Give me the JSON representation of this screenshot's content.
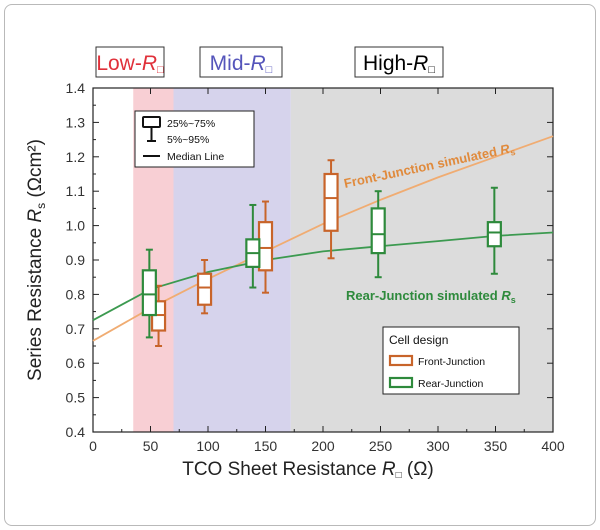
{
  "chart_data": {
    "type": "box",
    "xlabel": "TCO Sheet Resistance R□ (Ω)",
    "xlabel_parts": [
      "TCO Sheet Resistance",
      "R",
      "□",
      "(Ω)"
    ],
    "ylabel": "Series Resistance Rs (Ωcm²)",
    "ylabel_parts": [
      "Series Resistance",
      "R",
      "s",
      "(Ωcm²)"
    ],
    "xlim": [
      0,
      400
    ],
    "ylim": [
      0.4,
      1.4
    ],
    "xticks": [
      0,
      50,
      100,
      150,
      200,
      250,
      300,
      350,
      400
    ],
    "xtick_labels": [
      "0",
      "50",
      "100",
      "150",
      "200",
      "250",
      "300",
      "350",
      "400"
    ],
    "yticks": [
      0.4,
      0.5,
      0.6,
      0.7,
      0.8,
      0.9,
      1.0,
      1.1,
      1.2,
      1.3,
      1.4
    ],
    "ytick_labels": [
      "0.4",
      "0.5",
      "0.6",
      "0.7",
      "0.8",
      "0.9",
      "1.0",
      "1.1",
      "1.2",
      "1.3",
      "1.4"
    ],
    "regions": [
      {
        "name": "Low-R□",
        "label_main": "Low-",
        "label_r": "R",
        "label_sub": "□",
        "x0": 35,
        "x1": 70,
        "fill": "#f8cfd4",
        "text_color": "#e0303a"
      },
      {
        "name": "Mid-R□",
        "label_main": "Mid-",
        "label_r": "R",
        "label_sub": "□",
        "x0": 70,
        "x1": 172,
        "fill": "#d6d3ec",
        "text_color": "#5555bb"
      },
      {
        "name": "High-R□",
        "label_main": "High-",
        "label_r": "R",
        "label_sub": "□",
        "x0": 172,
        "x1": 400,
        "fill": "#dcdcdc",
        "text_color": "#000000"
      }
    ],
    "series": [
      {
        "name": "Front-Junction",
        "color": "#c8642a",
        "boxes": [
          {
            "x": 57,
            "p5": 0.65,
            "q1": 0.695,
            "median": 0.74,
            "q3": 0.78,
            "p95": 0.825
          },
          {
            "x": 97,
            "p5": 0.745,
            "q1": 0.77,
            "median": 0.82,
            "q3": 0.86,
            "p95": 0.9
          },
          {
            "x": 150,
            "p5": 0.805,
            "q1": 0.87,
            "median": 0.935,
            "q3": 1.01,
            "p95": 1.07
          },
          {
            "x": 207,
            "p5": 0.905,
            "q1": 0.985,
            "median": 1.08,
            "q3": 1.15,
            "p95": 1.19
          }
        ]
      },
      {
        "name": "Rear-Junction",
        "color": "#2e8a3c",
        "boxes": [
          {
            "x": 49,
            "p5": 0.675,
            "q1": 0.74,
            "median": 0.8,
            "q3": 0.87,
            "p95": 0.93
          },
          {
            "x": 139,
            "p5": 0.82,
            "q1": 0.88,
            "median": 0.92,
            "q3": 0.96,
            "p95": 1.06
          },
          {
            "x": 248,
            "p5": 0.85,
            "q1": 0.92,
            "median": 0.975,
            "q3": 1.05,
            "p95": 1.1
          },
          {
            "x": 349,
            "p5": 0.86,
            "q1": 0.94,
            "median": 0.98,
            "q3": 1.01,
            "p95": 1.11
          }
        ]
      }
    ],
    "curves": [
      {
        "name": "Front-Junction simulated Rs",
        "label_main": "Front-Junction simulated R",
        "label_sub": "s",
        "color": "#f0ac72",
        "text_color": "#e08a3c",
        "x": [
          0,
          50,
          100,
          150,
          200,
          250,
          300,
          350,
          400
        ],
        "y": [
          0.665,
          0.76,
          0.845,
          0.925,
          1.005,
          1.075,
          1.14,
          1.2,
          1.26
        ]
      },
      {
        "name": "Rear-Junction simulated Rs",
        "label_main": "Rear-Junction simulated R",
        "label_sub": "s",
        "color": "#3c9a50",
        "text_color": "#2e8a3c",
        "x": [
          0,
          50,
          100,
          150,
          200,
          250,
          300,
          350,
          400
        ],
        "y": [
          0.725,
          0.815,
          0.865,
          0.9,
          0.925,
          0.94,
          0.955,
          0.97,
          0.98
        ]
      }
    ],
    "box_legend": {
      "items": [
        "25%~75%",
        "5%~95%",
        "Median Line"
      ]
    },
    "legend": {
      "title": "Cell design",
      "placement": "bottom-right",
      "items": [
        "Front-Junction",
        "Rear-Junction"
      ]
    }
  }
}
